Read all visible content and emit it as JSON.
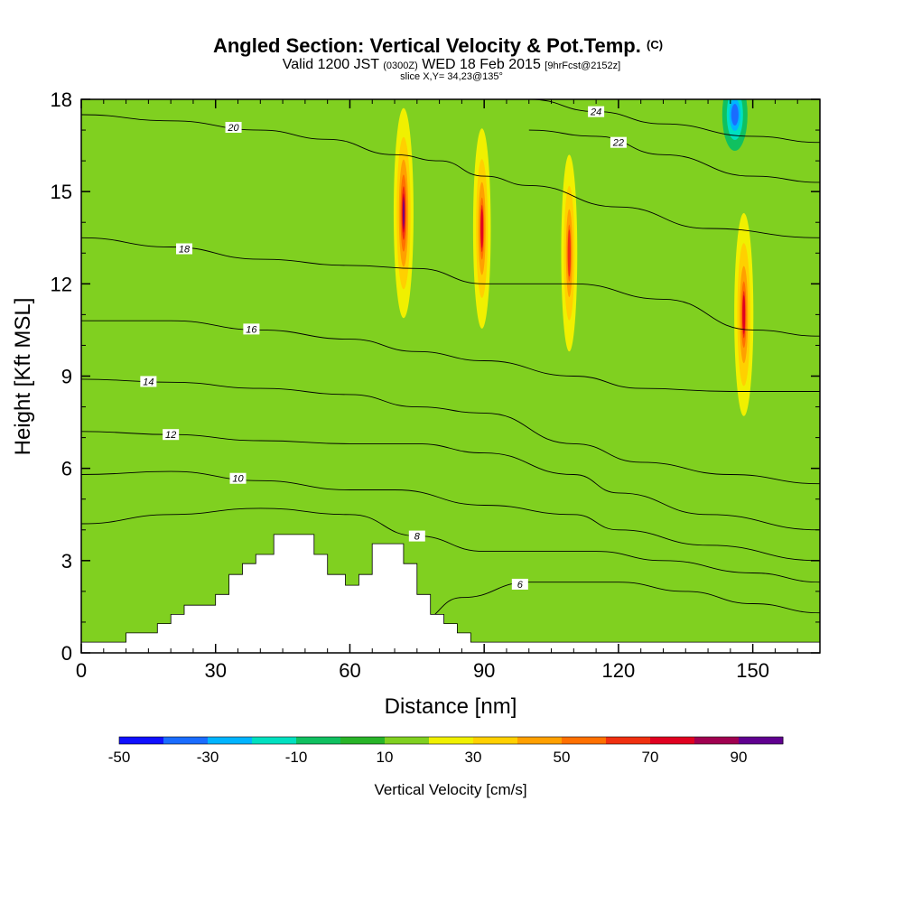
{
  "chart_data": {
    "type": "heatmap",
    "title": "Angled Section: Vertical Velocity & Pot.Temp.",
    "title_suffix": "(C)",
    "subtitle_parts": [
      "Valid 1200 JST",
      "(0300Z)",
      "WED 18 Feb 2015",
      "[9hrFcst@2152z]"
    ],
    "subtitle2": "slice X,Y= 34,23@135°",
    "xlabel": "Distance [nm]",
    "ylabel": "Height [Kft MSL]",
    "xlim": [
      0,
      165
    ],
    "ylim": [
      0,
      18
    ],
    "xticks": [
      0,
      30,
      60,
      90,
      120,
      150
    ],
    "yticks": [
      0,
      3,
      6,
      9,
      12,
      15,
      18
    ],
    "colorbar": {
      "label": "Vertical Velocity [cm/s]",
      "tick_labels": [
        "-50",
        "-30",
        "-10",
        "10",
        "30",
        "50",
        "70",
        "90"
      ],
      "tick_values": [
        -50,
        -30,
        -10,
        10,
        30,
        50,
        70,
        90
      ],
      "range": [
        -50,
        100
      ],
      "colors": [
        "#1010ff",
        "#1a6cff",
        "#00b4ff",
        "#00e0c0",
        "#10c060",
        "#28b428",
        "#80d020",
        "#f0f000",
        "#ffd000",
        "#ffa000",
        "#ff7000",
        "#f03010",
        "#e00020",
        "#a00050",
        "#600090"
      ]
    },
    "background_color": "#80d020",
    "updrafts": [
      {
        "x": 72,
        "y_center": 14.3,
        "peak_w": 95,
        "half_width_nm": 3.2
      },
      {
        "x": 89.5,
        "y_center": 13.8,
        "peak_w": 75,
        "half_width_nm": 3.0
      },
      {
        "x": 109,
        "y_center": 13.0,
        "peak_w": 70,
        "half_width_nm": 2.8
      },
      {
        "x": 148,
        "y_center": 11.0,
        "peak_w": 80,
        "half_width_nm": 3.2
      }
    ],
    "downdraft_core": {
      "x": 146,
      "y": 17.5,
      "min_w": -45
    },
    "terrain": [
      [
        0,
        0.35
      ],
      [
        10,
        0.35
      ],
      [
        10,
        0.65
      ],
      [
        17,
        0.65
      ],
      [
        17,
        0.95
      ],
      [
        20,
        0.95
      ],
      [
        20,
        1.25
      ],
      [
        23,
        1.25
      ],
      [
        23,
        1.55
      ],
      [
        30,
        1.55
      ],
      [
        30,
        1.9
      ],
      [
        33,
        1.9
      ],
      [
        33,
        2.55
      ],
      [
        36,
        2.55
      ],
      [
        36,
        2.9
      ],
      [
        39,
        2.9
      ],
      [
        39,
        3.2
      ],
      [
        43,
        3.2
      ],
      [
        43,
        3.85
      ],
      [
        52,
        3.85
      ],
      [
        52,
        3.2
      ],
      [
        55,
        3.2
      ],
      [
        55,
        2.55
      ],
      [
        59,
        2.55
      ],
      [
        59,
        2.2
      ],
      [
        62,
        2.2
      ],
      [
        62,
        2.55
      ],
      [
        65,
        2.55
      ],
      [
        65,
        3.55
      ],
      [
        72,
        3.55
      ],
      [
        72,
        2.9
      ],
      [
        75,
        2.9
      ],
      [
        75,
        1.9
      ],
      [
        78,
        1.9
      ],
      [
        78,
        1.25
      ],
      [
        81,
        1.25
      ],
      [
        81,
        0.95
      ],
      [
        84,
        0.95
      ],
      [
        84,
        0.65
      ],
      [
        87,
        0.65
      ],
      [
        87,
        0.35
      ],
      [
        165,
        0.35
      ]
    ],
    "contours_theta": [
      {
        "value": 6,
        "label_x": 98,
        "points": [
          [
            75,
            1.0
          ],
          [
            85,
            1.8
          ],
          [
            100,
            2.3
          ],
          [
            120,
            2.3
          ],
          [
            135,
            2.0
          ],
          [
            150,
            1.6
          ],
          [
            165,
            1.3
          ]
        ]
      },
      {
        "value": 8,
        "label_x": 75,
        "points": [
          [
            0,
            4.2
          ],
          [
            20,
            4.5
          ],
          [
            40,
            4.7
          ],
          [
            60,
            4.5
          ],
          [
            75,
            3.8
          ],
          [
            90,
            3.3
          ],
          [
            115,
            3.3
          ],
          [
            130,
            3.0
          ],
          [
            150,
            2.6
          ],
          [
            165,
            2.3
          ]
        ]
      },
      {
        "value": 10,
        "label_x": 35,
        "points": [
          [
            0,
            5.8
          ],
          [
            20,
            5.9
          ],
          [
            40,
            5.6
          ],
          [
            60,
            5.3
          ],
          [
            70,
            5.3
          ],
          [
            90,
            4.8
          ],
          [
            110,
            4.5
          ],
          [
            120,
            4.0
          ],
          [
            140,
            3.5
          ],
          [
            165,
            3.0
          ]
        ]
      },
      {
        "value": 12,
        "label_x": 20,
        "points": [
          [
            0,
            7.2
          ],
          [
            20,
            7.1
          ],
          [
            40,
            6.9
          ],
          [
            60,
            6.8
          ],
          [
            75,
            6.8
          ],
          [
            90,
            6.5
          ],
          [
            110,
            5.8
          ],
          [
            120,
            5.2
          ],
          [
            140,
            4.5
          ],
          [
            165,
            4.0
          ]
        ]
      },
      {
        "value": 14,
        "label_x": 15,
        "points": [
          [
            0,
            8.9
          ],
          [
            20,
            8.8
          ],
          [
            40,
            8.6
          ],
          [
            60,
            8.4
          ],
          [
            75,
            8.0
          ],
          [
            90,
            7.8
          ],
          [
            110,
            6.8
          ],
          [
            125,
            6.2
          ],
          [
            145,
            5.8
          ],
          [
            165,
            5.5
          ]
        ]
      },
      {
        "value": 16,
        "label_x": 38,
        "points": [
          [
            0,
            10.8
          ],
          [
            20,
            10.8
          ],
          [
            40,
            10.5
          ],
          [
            60,
            10.2
          ],
          [
            75,
            9.8
          ],
          [
            90,
            9.5
          ],
          [
            110,
            9.0
          ],
          [
            125,
            8.6
          ],
          [
            145,
            8.5
          ],
          [
            165,
            8.5
          ]
        ]
      },
      {
        "value": 18,
        "label_x": 23,
        "points": [
          [
            0,
            13.5
          ],
          [
            20,
            13.2
          ],
          [
            40,
            12.8
          ],
          [
            60,
            12.6
          ],
          [
            75,
            12.5
          ],
          [
            90,
            12.0
          ],
          [
            110,
            12.0
          ],
          [
            130,
            11.5
          ],
          [
            150,
            10.5
          ],
          [
            165,
            10.3
          ]
        ]
      },
      {
        "value": 20,
        "label_x": 34,
        "points": [
          [
            0,
            17.5
          ],
          [
            20,
            17.3
          ],
          [
            40,
            17.0
          ],
          [
            55,
            16.7
          ],
          [
            70,
            16.2
          ],
          [
            80,
            16.0
          ],
          [
            90,
            15.5
          ],
          [
            100,
            15.2
          ],
          [
            120,
            14.5
          ],
          [
            140,
            13.8
          ],
          [
            165,
            13.5
          ]
        ]
      },
      {
        "value": 22,
        "label_x": 120,
        "points": [
          [
            100,
            17.0
          ],
          [
            115,
            16.8
          ],
          [
            130,
            16.2
          ],
          [
            150,
            15.5
          ],
          [
            165,
            15.3
          ]
        ]
      },
      {
        "value": 24,
        "label_x": 115,
        "points": [
          [
            100,
            18.0
          ],
          [
            115,
            17.6
          ],
          [
            130,
            17.2
          ],
          [
            150,
            16.8
          ],
          [
            165,
            16.6
          ]
        ]
      }
    ]
  }
}
